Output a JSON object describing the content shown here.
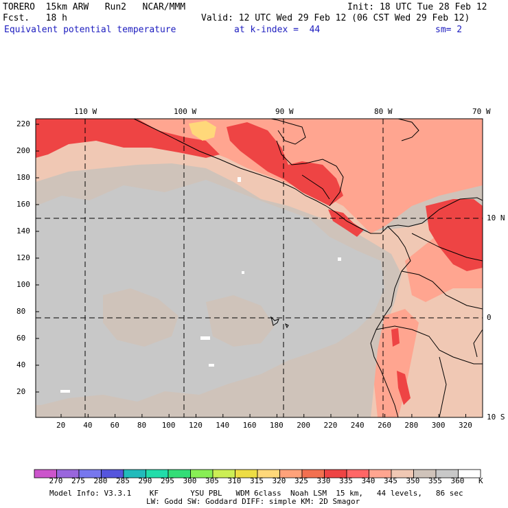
{
  "header": {
    "model": "TORERO  15km ARW   Run2   NCAR/MMM",
    "init": "Init: 18 UTC Tue 28 Feb 12",
    "fcst": "Fcst.   18 h",
    "valid": "Valid: 12 UTC Wed 29 Feb 12 (06 CST Wed 29 Feb 12)",
    "field": "Equivalent potential temperature",
    "kindex": "at k-index =  44",
    "sm": "sm= 2"
  },
  "map": {
    "lon_labels": [
      "110 W",
      "100 W",
      "90 W",
      "80 W",
      "70 W"
    ],
    "lat_labels": [
      "10 N",
      "0",
      "10 S"
    ],
    "y_ticks": [
      "220",
      "200",
      "180",
      "160",
      "140",
      "120",
      "100",
      "80",
      "60",
      "40",
      "20"
    ],
    "x_ticks": [
      "20",
      "40",
      "60",
      "80",
      "100",
      "120",
      "140",
      "160",
      "180",
      "200",
      "220",
      "240",
      "260",
      "280",
      "300",
      "320"
    ]
  },
  "colorbar": {
    "labels": [
      "270",
      "275",
      "280",
      "285",
      "290",
      "295",
      "300",
      "305",
      "310",
      "315",
      "320",
      "325",
      "330",
      "335",
      "340",
      "345",
      "350",
      "355",
      "360"
    ],
    "unit": "K",
    "colors": [
      "#cc55cc",
      "#9966dd",
      "#7777ee",
      "#5555dd",
      "#22bbbb",
      "#22ddaa",
      "#33dd77",
      "#88ee55",
      "#ccee55",
      "#eedd44",
      "#ffd87a",
      "#ffa27a",
      "#f27050",
      "#ee4444",
      "#ff6666",
      "#ffa590",
      "#f0c8b4",
      "#cfc3ba",
      "#c8c8c8",
      "#ffffff"
    ]
  },
  "footer": {
    "line1": "Model Info: V3.3.1    KF       YSU PBL   WDM 6class  Noah LSM  15 km,   44 levels,   86 sec",
    "line2": "LW: Godd SW: Goddard DIFF: simple KM: 2D Smagor"
  }
}
